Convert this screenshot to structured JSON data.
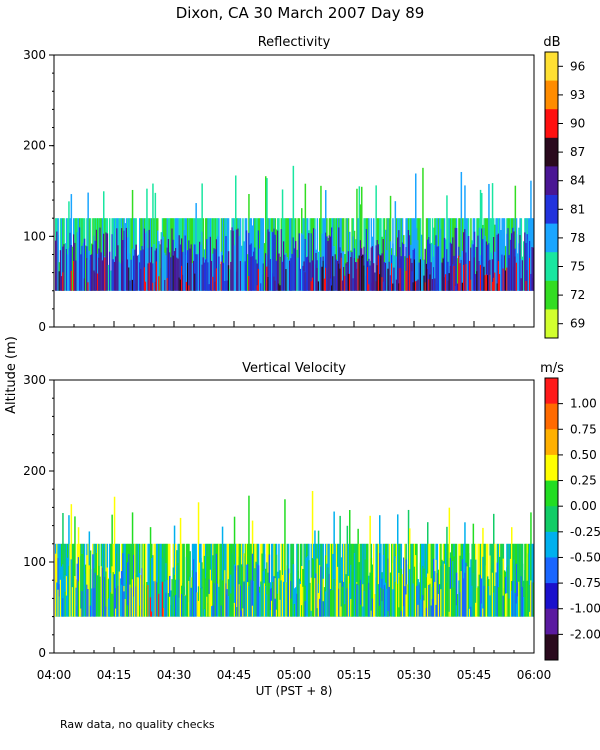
{
  "title": "Dixon, CA 30 March 2007  Day  89",
  "ylabel": "Altitude  (m)",
  "xlabel": "UT  (PST + 8)",
  "footnote": "Raw data, no quality checks",
  "x_ticks": [
    "04:00",
    "04:15",
    "04:30",
    "04:45",
    "05:00",
    "05:15",
    "05:30",
    "05:45",
    "06:00"
  ],
  "y_ticks": [
    "0",
    "100",
    "200",
    "300"
  ],
  "chart_data": [
    {
      "type": "heatmap",
      "title": "Reflectivity",
      "colorbar_unit": "dB",
      "colorbar_labels": [
        "96",
        "93",
        "90",
        "87",
        "84",
        "81",
        "78",
        "75",
        "72",
        "69"
      ],
      "colorbar_colors": [
        "#ffe033",
        "#ff8c00",
        "#ff1010",
        "#2a0a1e",
        "#4a1694",
        "#2233dd",
        "#1aa5ff",
        "#19e6a0",
        "#33dd22",
        "#d2ff2e"
      ],
      "xlim": [
        "04:00",
        "06:00"
      ],
      "ylim": [
        0,
        300
      ],
      "data_extent_m": [
        40,
        180
      ],
      "description_values": {
        "typical_top_m": 120,
        "max_top_m": 180,
        "bottom_m": 40,
        "core_range_dB": [
          81,
          90
        ]
      }
    },
    {
      "type": "heatmap",
      "title": "Vertical Velocity",
      "colorbar_unit": "m/s",
      "colorbar_labels": [
        "1.00",
        "0.75",
        "0.50",
        "0.25",
        "0.00",
        "-0.25",
        "-0.50",
        "-0.75",
        "-1.00",
        "-2.00"
      ],
      "colorbar_colors": [
        "#ff1a1a",
        "#ff6a00",
        "#ffb000",
        "#ffff00",
        "#22dd22",
        "#11cc66",
        "#00b0ee",
        "#1a66ff",
        "#1a10cc",
        "#5a1aa0",
        "#2a0a1e"
      ],
      "xlim": [
        "04:00",
        "06:00"
      ],
      "ylim": [
        0,
        300
      ],
      "data_extent_m": [
        40,
        180
      ],
      "description_values": {
        "typical_top_m": 120,
        "max_top_m": 180,
        "bottom_m": 40
      }
    }
  ]
}
